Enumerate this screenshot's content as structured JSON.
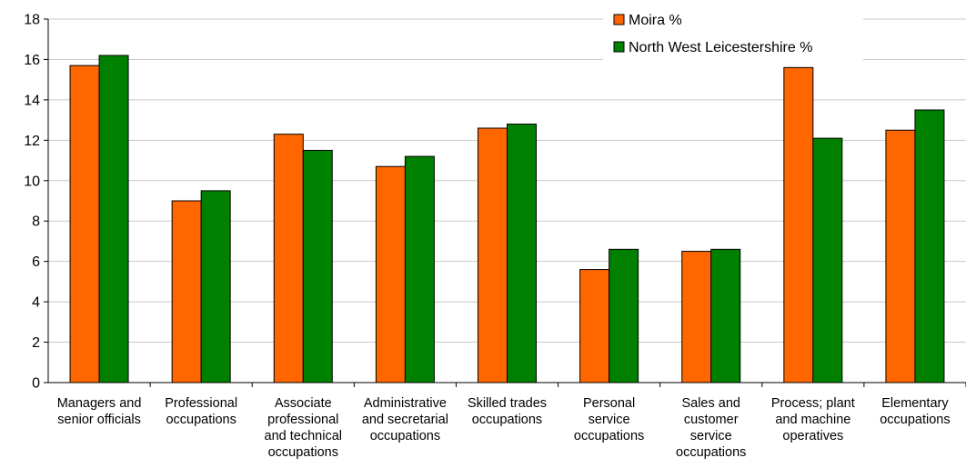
{
  "chart_data": {
    "type": "bar",
    "categories": [
      [
        "Managers and",
        "senior officials"
      ],
      [
        "Professional",
        "occupations"
      ],
      [
        "Associate",
        "professional",
        "and technical",
        "occupations"
      ],
      [
        "Administrative",
        "and secretarial",
        "occupations"
      ],
      [
        "Skilled trades",
        "occupations"
      ],
      [
        "Personal",
        "service",
        "occupations"
      ],
      [
        "Sales and",
        "customer",
        "service",
        "occupations"
      ],
      [
        "Process; plant",
        "and machine",
        "operatives"
      ],
      [
        "Elementary",
        "occupations"
      ]
    ],
    "series": [
      {
        "name": "Moira %",
        "color": "#ff6600",
        "values": [
          15.7,
          9.0,
          12.3,
          10.7,
          12.6,
          5.6,
          6.5,
          15.6,
          12.5
        ]
      },
      {
        "name": "North West Leicestershire %",
        "color": "#008000",
        "values": [
          16.2,
          9.5,
          11.5,
          11.2,
          12.8,
          6.6,
          6.6,
          12.1,
          13.5
        ]
      }
    ],
    "ylim": [
      0,
      18
    ],
    "yticks": [
      0,
      2,
      4,
      6,
      8,
      10,
      12,
      14,
      16,
      18
    ],
    "grid": true,
    "legend": "top-right"
  }
}
